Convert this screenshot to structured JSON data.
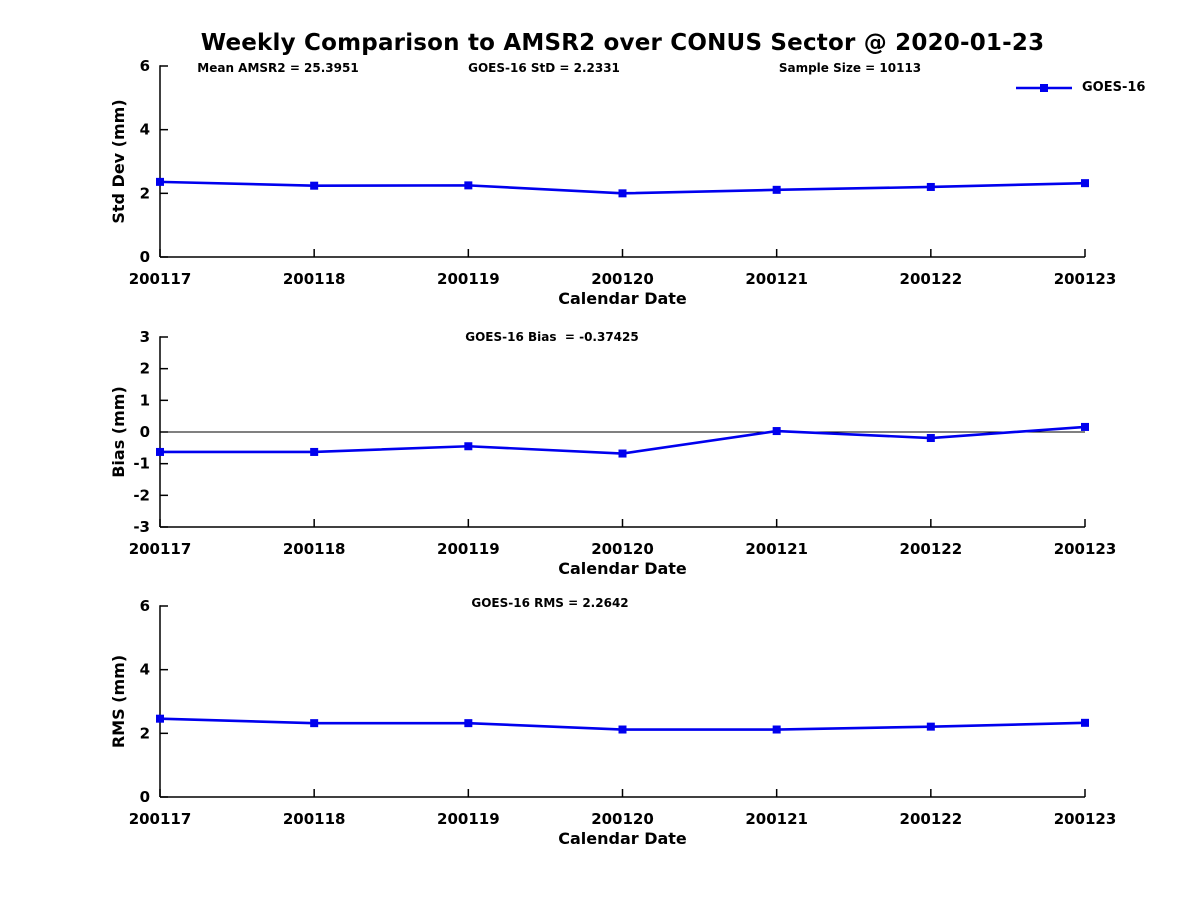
{
  "title": "Weekly Comparison to AMSR2 over CONUS Sector @ 2020-01-23",
  "legend": {
    "label": "GOES-16",
    "color": "#0000EE"
  },
  "chart_data": [
    {
      "type": "line",
      "name": "std-dev",
      "annotations": [
        "Mean AMSR2 = 25.3951",
        "GOES-16 StD = 2.2331",
        "Sample Size = 10113"
      ],
      "categories": [
        "200117",
        "200118",
        "200119",
        "200120",
        "200121",
        "200122",
        "200123"
      ],
      "series": [
        {
          "name": "GOES-16",
          "values": [
            2.36,
            2.24,
            2.25,
            2.0,
            2.11,
            2.2,
            2.32
          ]
        }
      ],
      "xlabel": "Calendar Date",
      "ylabel": "Std Dev (mm)",
      "ylim": [
        0,
        6
      ],
      "yticks": [
        0,
        2,
        4,
        6
      ],
      "zero_line": false,
      "grid": false,
      "legend_position": "top-right"
    },
    {
      "type": "line",
      "name": "bias",
      "annotations": [
        "GOES-16 Bias  = -0.37425"
      ],
      "categories": [
        "200117",
        "200118",
        "200119",
        "200120",
        "200121",
        "200122",
        "200123"
      ],
      "series": [
        {
          "name": "GOES-16",
          "values": [
            -0.63,
            -0.63,
            -0.45,
            -0.68,
            0.03,
            -0.19,
            0.16
          ]
        }
      ],
      "xlabel": "Calendar Date",
      "ylabel": "Bias (mm)",
      "ylim": [
        -3,
        3
      ],
      "yticks": [
        -3,
        -2,
        -1,
        0,
        1,
        2,
        3
      ],
      "zero_line": true,
      "grid": false,
      "legend_position": "none"
    },
    {
      "type": "line",
      "name": "rms",
      "annotations": [
        "GOES-16 RMS = 2.2642"
      ],
      "categories": [
        "200117",
        "200118",
        "200119",
        "200120",
        "200121",
        "200122",
        "200123"
      ],
      "series": [
        {
          "name": "GOES-16",
          "values": [
            2.46,
            2.32,
            2.32,
            2.12,
            2.12,
            2.21,
            2.33
          ]
        }
      ],
      "xlabel": "Calendar Date",
      "ylabel": "RMS (mm)",
      "ylim": [
        0,
        6
      ],
      "yticks": [
        0,
        2,
        4,
        6
      ],
      "zero_line": false,
      "grid": false,
      "legend_position": "none"
    }
  ]
}
